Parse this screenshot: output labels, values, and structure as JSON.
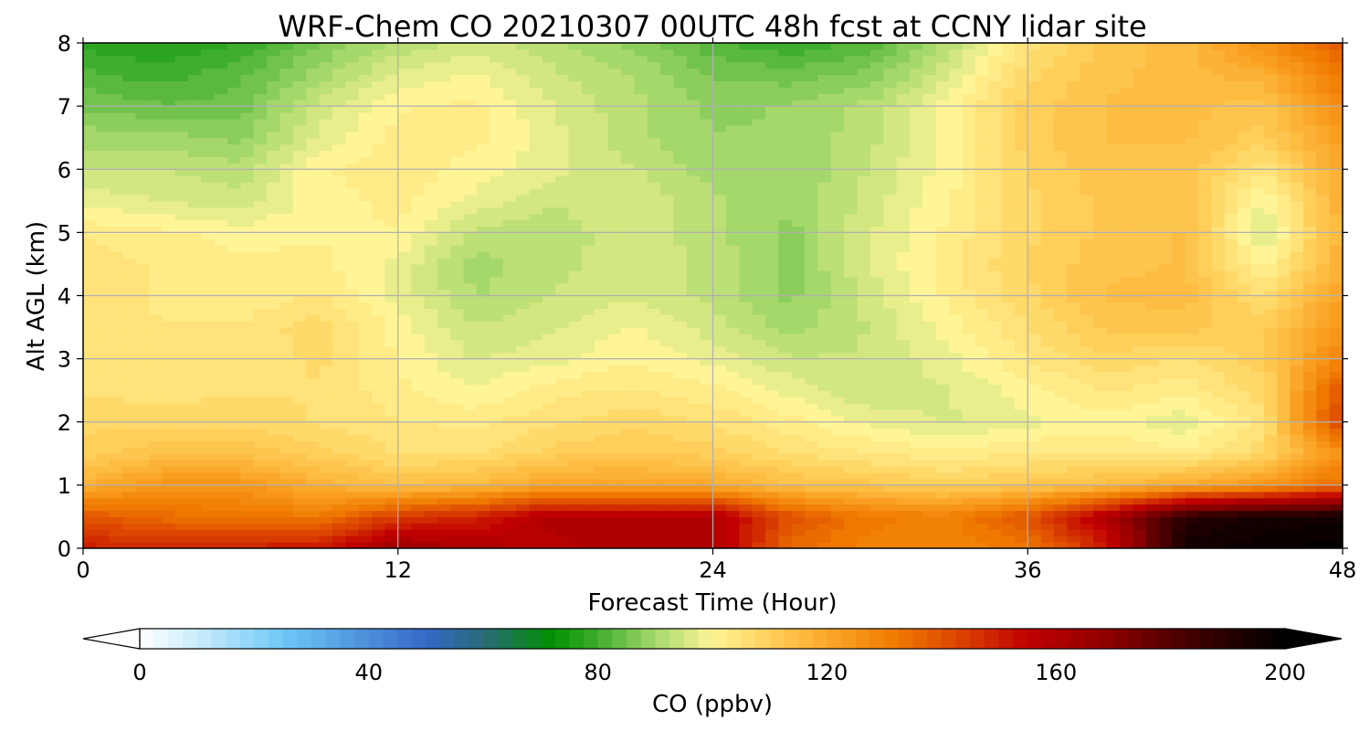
{
  "chart_data": {
    "type": "heatmap",
    "title": "WRF-Chem CO  20210307 00UTC 48h fcst at CCNY lidar site",
    "xlabel": "Forecast Time (Hour)",
    "ylabel": "Alt AGL (km)",
    "xlim": [
      0,
      48
    ],
    "ylim": [
      0,
      8
    ],
    "xticks": [
      0,
      12,
      24,
      36,
      48
    ],
    "yticks": [
      0,
      1,
      2,
      3,
      4,
      5,
      6,
      7,
      8
    ],
    "grid": true,
    "colorbar": {
      "label": "CO  (ppbv)",
      "ticks": [
        0,
        40,
        80,
        120,
        160,
        200
      ],
      "range": [
        0,
        200
      ],
      "extend": "both",
      "stops": [
        {
          "value": 0,
          "color": "#ffffff"
        },
        {
          "value": 10,
          "color": "#c9ecfb"
        },
        {
          "value": 25,
          "color": "#6ec8f7"
        },
        {
          "value": 50,
          "color": "#3568c8"
        },
        {
          "value": 60,
          "color": "#2a6a78"
        },
        {
          "value": 72,
          "color": "#009000"
        },
        {
          "value": 80,
          "color": "#3fae2e"
        },
        {
          "value": 90,
          "color": "#a5d86b"
        },
        {
          "value": 100,
          "color": "#fff597"
        },
        {
          "value": 110,
          "color": "#ffcf5a"
        },
        {
          "value": 120,
          "color": "#fba82a"
        },
        {
          "value": 132,
          "color": "#f07a00"
        },
        {
          "value": 145,
          "color": "#d73a00"
        },
        {
          "value": 155,
          "color": "#c00000"
        },
        {
          "value": 170,
          "color": "#8a0000"
        },
        {
          "value": 185,
          "color": "#3a0000"
        },
        {
          "value": 200,
          "color": "#000000"
        }
      ]
    },
    "grid_data": {
      "x": [
        0,
        3,
        6,
        9,
        12,
        15,
        18,
        21,
        24,
        27,
        30,
        33,
        36,
        39,
        42,
        45,
        48
      ],
      "y": [
        0,
        0.5,
        1,
        1.5,
        2,
        2.5,
        3,
        3.5,
        4,
        4.5,
        5,
        5.5,
        6,
        6.5,
        7,
        7.5,
        8
      ],
      "values": [
        [
          150,
          148,
          150,
          152,
          165,
          160,
          158,
          160,
          160,
          135,
          130,
          130,
          132,
          150,
          195,
          198,
          200
        ],
        [
          140,
          135,
          133,
          132,
          145,
          150,
          160,
          160,
          160,
          140,
          132,
          130,
          140,
          160,
          190,
          195,
          195
        ],
        [
          118,
          125,
          125,
          118,
          114,
          116,
          122,
          122,
          120,
          114,
          112,
          110,
          112,
          115,
          120,
          125,
          135
        ],
        [
          110,
          113,
          113,
          110,
          106,
          106,
          110,
          111,
          110,
          106,
          104,
          102,
          104,
          104,
          102,
          108,
          125
        ],
        [
          108,
          108,
          108,
          106,
          104,
          103,
          106,
          108,
          106,
          102,
          98,
          96,
          98,
          100,
          97,
          105,
          145
        ],
        [
          106,
          105,
          106,
          106,
          102,
          99,
          103,
          104,
          102,
          98,
          94,
          96,
          100,
          104,
          102,
          108,
          140
        ],
        [
          106,
          104,
          104,
          107,
          101,
          96,
          98,
          101,
          98,
          94,
          94,
          98,
          104,
          108,
          106,
          110,
          130
        ],
        [
          106,
          104,
          104,
          108,
          100,
          94,
          96,
          99,
          95,
          90,
          94,
          100,
          106,
          112,
          112,
          110,
          125
        ],
        [
          106,
          103,
          102,
          104,
          98,
          91,
          94,
          96,
          93,
          88,
          95,
          102,
          108,
          114,
          115,
          106,
          122
        ],
        [
          106,
          103,
          102,
          102,
          98,
          90,
          93,
          95,
          93,
          88,
          96,
          103,
          109,
          113,
          114,
          100,
          118
        ],
        [
          103,
          102,
          100,
          101,
          101,
          93,
          92,
          96,
          92,
          88,
          96,
          102,
          108,
          112,
          114,
          95,
          118
        ],
        [
          98,
          96,
          95,
          100,
          102,
          98,
          94,
          96,
          92,
          89,
          95,
          101,
          108,
          112,
          113,
          98,
          118
        ],
        [
          94,
          94,
          92,
          101,
          103,
          100,
          97,
          94,
          90,
          89,
          94,
          100,
          109,
          113,
          113,
          104,
          120
        ],
        [
          90,
          90,
          88,
          97,
          102,
          102,
          97,
          92,
          89,
          89,
          93,
          100,
          110,
          114,
          114,
          110,
          123
        ],
        [
          86,
          84,
          85,
          95,
          101,
          102,
          96,
          92,
          88,
          89,
          92,
          100,
          110,
          114,
          115,
          112,
          128
        ],
        [
          82,
          80,
          83,
          90,
          97,
          99,
          94,
          91,
          86,
          85,
          87,
          96,
          108,
          113,
          115,
          118,
          132
        ],
        [
          78,
          76,
          79,
          86,
          92,
          95,
          92,
          88,
          82,
          79,
          82,
          92,
          105,
          112,
          115,
          126,
          138
        ]
      ]
    }
  }
}
